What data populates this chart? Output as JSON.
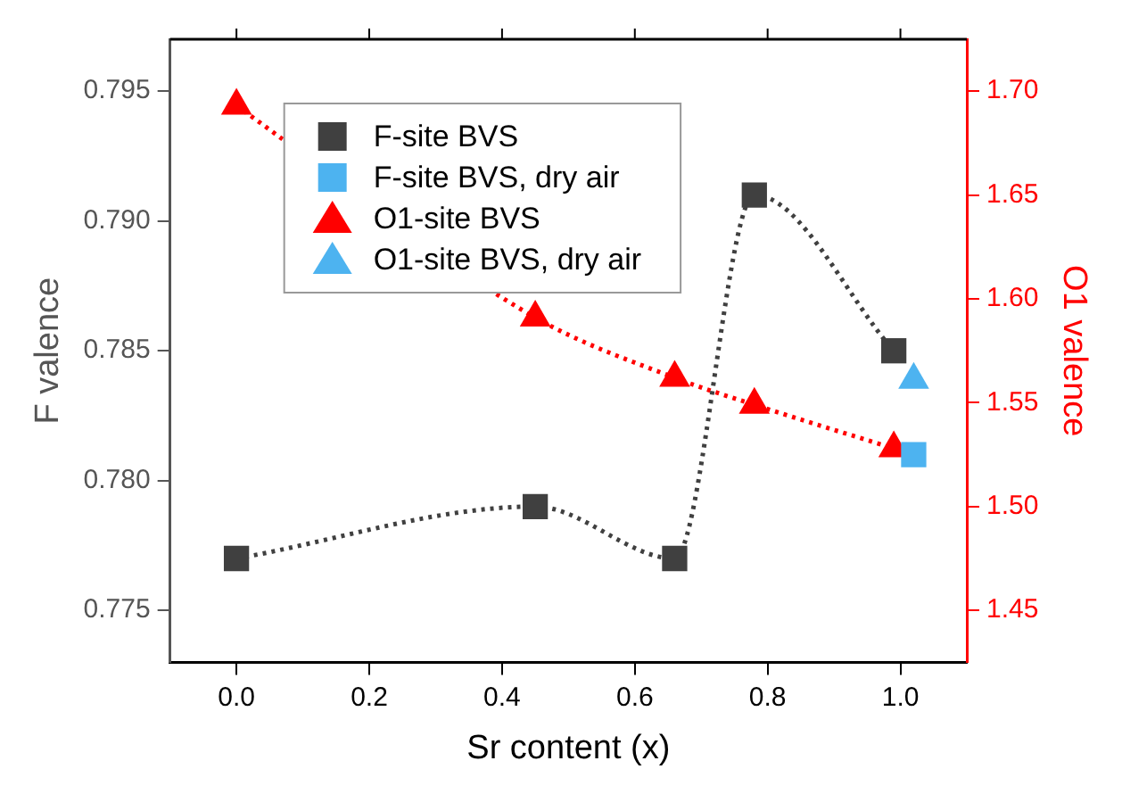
{
  "chart_data": {
    "type": "line",
    "xlabel": "Sr content (x)",
    "ylabel": "F valence",
    "y2label": "O1 valence",
    "xlim": [
      -0.1,
      1.1
    ],
    "xticks": [
      {
        "value": 0,
        "label": "0.0"
      },
      0.2,
      0.4,
      0.6,
      0.8,
      {
        "value": 1,
        "label": "1.0"
      }
    ],
    "ylim": [
      0.773,
      0.797
    ],
    "yticks": [
      0.775,
      {
        "value": 0.78,
        "label": "0.780"
      },
      0.785,
      {
        "value": 0.79,
        "label": "0.790"
      },
      0.795
    ],
    "y2lim": [
      1.425,
      1.725
    ],
    "y2ticks": [
      1.45,
      {
        "value": 1.5,
        "label": "1.50"
      },
      1.55,
      {
        "value": 1.6,
        "label": "1.60"
      },
      1.65,
      {
        "value": 1.7,
        "label": "1.70"
      }
    ],
    "grid": false,
    "legend": "top left",
    "series": [
      {
        "name": "F-site BVS",
        "color": "#404040",
        "marker": "square",
        "line_style": "dotted",
        "x": [
          0,
          0.45,
          0.66,
          0.78,
          0.99
        ],
        "values": [
          0.777,
          0.779,
          0.777,
          0.791,
          0.785
        ]
      },
      {
        "name": "F-site BVS, dry air",
        "type": "scatter",
        "color": "#4db3f0",
        "marker": "square",
        "x": [
          1.02
        ],
        "values": [
          0.781
        ]
      },
      {
        "name": "O1-site BVS",
        "color": "#ff0000",
        "marker": "triangle",
        "line_style": "dotted",
        "axis": "y2",
        "x": [
          0,
          0.45,
          0.66,
          0.78,
          0.99
        ],
        "values": [
          1.693,
          1.591,
          1.562,
          1.549,
          1.528
        ]
      },
      {
        "name": "O1-site BVS, dry air",
        "type": "scatter",
        "color": "#4db3f0",
        "marker": "triangle",
        "axis": "y2",
        "x": [
          1.02
        ],
        "values": [
          1.561
        ]
      }
    ]
  }
}
